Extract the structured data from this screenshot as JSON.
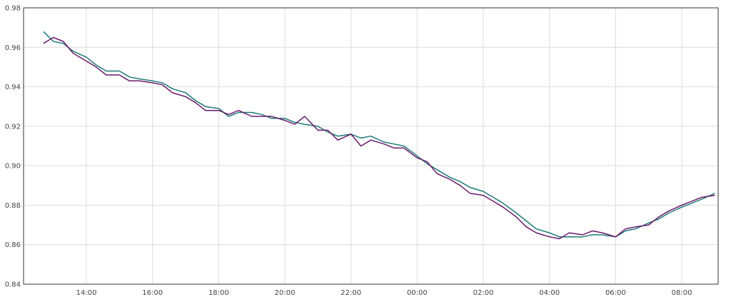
{
  "chart_data": {
    "type": "line",
    "title": "",
    "xlabel": "",
    "ylabel": "",
    "x_ticks": [
      "14:00",
      "16:00",
      "18:00",
      "20:00",
      "22:00",
      "00:00",
      "02:00",
      "04:00",
      "06:00",
      "08:00"
    ],
    "x_tick_hours": [
      14,
      16,
      18,
      20,
      22,
      24,
      26,
      28,
      30,
      32
    ],
    "xlim_hours": [
      12.1,
      33.1
    ],
    "y_ticks": [
      "0.84",
      "0.86",
      "0.88",
      "0.90",
      "0.92",
      "0.94",
      "0.96",
      "0.98"
    ],
    "ylim": [
      0.84,
      0.98
    ],
    "grid": true,
    "legend": "none",
    "series": [
      {
        "color": "#1f7a7a",
        "x_hours": [
          12.7,
          13.0,
          13.3,
          13.6,
          14.0,
          14.3,
          14.6,
          15.0,
          15.3,
          15.6,
          16.0,
          16.3,
          16.6,
          17.0,
          17.3,
          17.6,
          18.0,
          18.3,
          18.6,
          19.0,
          19.3,
          19.6,
          20.0,
          20.3,
          20.6,
          21.0,
          21.3,
          21.6,
          22.0,
          22.3,
          22.6,
          23.0,
          23.3,
          23.6,
          24.0,
          24.3,
          24.6,
          25.0,
          25.3,
          25.6,
          26.0,
          26.3,
          26.6,
          27.0,
          27.3,
          27.6,
          28.0,
          28.3,
          28.6,
          29.0,
          29.3,
          29.6,
          30.0,
          30.3,
          30.6,
          31.0,
          31.3,
          31.6,
          32.0,
          32.3,
          32.6,
          33.0
        ],
        "values": [
          0.968,
          0.963,
          0.962,
          0.958,
          0.955,
          0.951,
          0.948,
          0.948,
          0.945,
          0.944,
          0.943,
          0.942,
          0.939,
          0.937,
          0.933,
          0.93,
          0.929,
          0.925,
          0.927,
          0.927,
          0.926,
          0.924,
          0.924,
          0.922,
          0.921,
          0.92,
          0.917,
          0.915,
          0.916,
          0.914,
          0.915,
          0.912,
          0.911,
          0.91,
          0.905,
          0.901,
          0.898,
          0.894,
          0.892,
          0.889,
          0.887,
          0.884,
          0.881,
          0.876,
          0.872,
          0.868,
          0.866,
          0.864,
          0.864,
          0.864,
          0.865,
          0.865,
          0.864,
          0.867,
          0.868,
          0.871,
          0.873,
          0.876,
          0.879,
          0.881,
          0.883,
          0.886
        ]
      },
      {
        "color": "#6b1a6b",
        "x_hours": [
          12.7,
          13.0,
          13.3,
          13.6,
          14.0,
          14.3,
          14.6,
          15.0,
          15.3,
          15.6,
          16.0,
          16.3,
          16.6,
          17.0,
          17.3,
          17.6,
          18.0,
          18.3,
          18.6,
          19.0,
          19.3,
          19.6,
          20.0,
          20.3,
          20.6,
          21.0,
          21.3,
          21.6,
          22.0,
          22.3,
          22.6,
          23.0,
          23.3,
          23.6,
          24.0,
          24.3,
          24.6,
          25.0,
          25.3,
          25.6,
          26.0,
          26.3,
          26.6,
          27.0,
          27.3,
          27.6,
          28.0,
          28.3,
          28.6,
          29.0,
          29.3,
          29.6,
          30.0,
          30.3,
          30.6,
          31.0,
          31.3,
          31.6,
          32.0,
          32.3,
          32.6,
          33.0
        ],
        "values": [
          0.962,
          0.965,
          0.963,
          0.957,
          0.953,
          0.95,
          0.946,
          0.946,
          0.943,
          0.943,
          0.942,
          0.941,
          0.937,
          0.935,
          0.932,
          0.928,
          0.928,
          0.926,
          0.928,
          0.925,
          0.925,
          0.925,
          0.923,
          0.921,
          0.925,
          0.918,
          0.918,
          0.913,
          0.916,
          0.91,
          0.913,
          0.911,
          0.909,
          0.909,
          0.904,
          0.902,
          0.896,
          0.893,
          0.89,
          0.886,
          0.885,
          0.882,
          0.879,
          0.874,
          0.869,
          0.866,
          0.864,
          0.863,
          0.866,
          0.865,
          0.867,
          0.866,
          0.864,
          0.868,
          0.869,
          0.87,
          0.874,
          0.877,
          0.88,
          0.882,
          0.884,
          0.885
        ]
      }
    ]
  }
}
